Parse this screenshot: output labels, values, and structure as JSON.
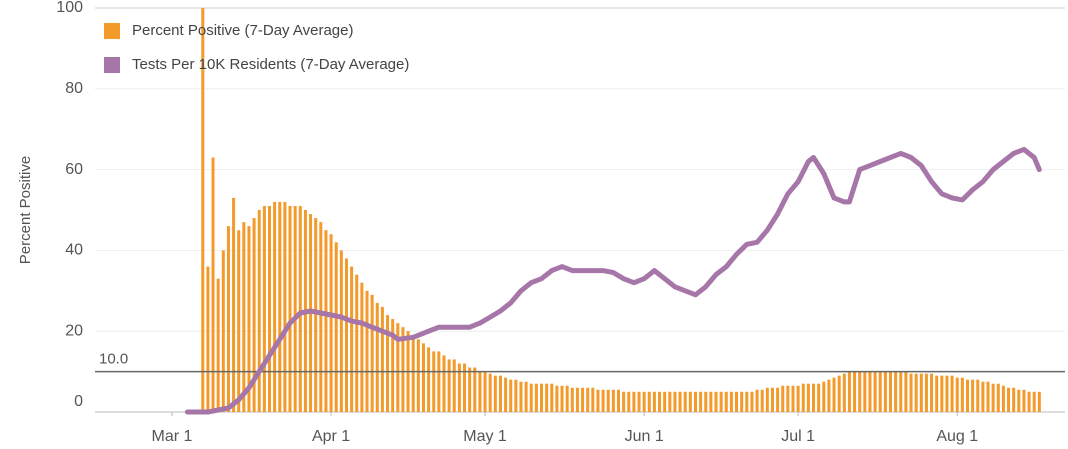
{
  "chart_data": {
    "type": "bar-line",
    "ylabel": "Percent Positive",
    "xlim": [
      -15,
      174
    ],
    "xticks": [
      {
        "value": 0,
        "label": "Mar 1"
      },
      {
        "value": 31,
        "label": "Apr 1"
      },
      {
        "value": 61,
        "label": "May 1"
      },
      {
        "value": 92,
        "label": "Jun 1"
      },
      {
        "value": 122,
        "label": "Jul 1"
      },
      {
        "value": 153,
        "label": "Aug 1"
      }
    ],
    "ylim": [
      0,
      100
    ],
    "yticks": [
      0,
      20,
      40,
      60,
      80,
      100
    ],
    "grid": true,
    "legend": "top-left",
    "reference_line": {
      "value": 10,
      "label": "10.0"
    },
    "series": [
      {
        "name": "Percent Positive (7-Day Average)",
        "type": "bar",
        "color": "#f39a2b",
        "x": [
          6,
          7,
          8,
          9,
          10,
          11,
          12,
          13,
          14,
          15,
          16,
          17,
          18,
          19,
          20,
          21,
          22,
          23,
          24,
          25,
          26,
          27,
          28,
          29,
          30,
          31,
          32,
          33,
          34,
          35,
          36,
          37,
          38,
          39,
          40,
          41,
          42,
          43,
          44,
          45,
          46,
          47,
          48,
          49,
          50,
          51,
          52,
          53,
          54,
          55,
          56,
          57,
          58,
          59,
          60,
          61,
          62,
          63,
          64,
          65,
          66,
          67,
          68,
          69,
          70,
          71,
          72,
          73,
          74,
          75,
          76,
          77,
          78,
          79,
          80,
          81,
          82,
          83,
          84,
          85,
          86,
          87,
          88,
          89,
          90,
          91,
          92,
          93,
          94,
          95,
          96,
          97,
          98,
          99,
          100,
          101,
          102,
          103,
          104,
          105,
          106,
          107,
          108,
          109,
          110,
          111,
          112,
          113,
          114,
          115,
          116,
          117,
          118,
          119,
          120,
          121,
          122,
          123,
          124,
          125,
          126,
          127,
          128,
          129,
          130,
          131,
          132,
          133,
          134,
          135,
          136,
          137,
          138,
          139,
          140,
          141,
          142,
          143,
          144,
          145,
          146,
          147,
          148,
          149,
          150,
          151,
          152,
          153,
          154,
          155,
          156,
          157,
          158,
          159,
          160,
          161,
          162,
          163,
          164,
          165,
          166,
          167,
          168,
          169
        ],
        "values": [
          100,
          36,
          63,
          33,
          40,
          46,
          53,
          45,
          47,
          46,
          48,
          50,
          51,
          51,
          52,
          52,
          52,
          51,
          51,
          51,
          50,
          49,
          48,
          47,
          45,
          44,
          42,
          40,
          38,
          36,
          34,
          32,
          30,
          29,
          27,
          26,
          24,
          23,
          22,
          21,
          20,
          19,
          18,
          17,
          16,
          15,
          15,
          14,
          13,
          13,
          12,
          12,
          11,
          11,
          10,
          10,
          9.5,
          9,
          9,
          8.5,
          8,
          8,
          7.5,
          7.5,
          7,
          7,
          7,
          7,
          7,
          6.5,
          6.5,
          6.5,
          6,
          6,
          6,
          6,
          6,
          5.5,
          5.5,
          5.5,
          5.5,
          5.5,
          5,
          5,
          5,
          5,
          5,
          5,
          5,
          5,
          5,
          5,
          5,
          5,
          5,
          5,
          5,
          5,
          5,
          5,
          5,
          5,
          5,
          5,
          5,
          5,
          5,
          5,
          5.5,
          5.5,
          6,
          6,
          6,
          6.5,
          6.5,
          6.5,
          6.5,
          7,
          7,
          7,
          7,
          7.5,
          8,
          8.5,
          9,
          9.5,
          10,
          10,
          10,
          10,
          10,
          10,
          10,
          10,
          10,
          10,
          10,
          10,
          9.5,
          9.5,
          9.5,
          9.5,
          9.5,
          9,
          9,
          9,
          9,
          8.5,
          8.5,
          8,
          8,
          8,
          7.5,
          7.5,
          7,
          7,
          6.5,
          6,
          6,
          5.5,
          5.5,
          5,
          5,
          5
        ]
      },
      {
        "name": "Tests Per 10K Residents (7-Day Average)",
        "type": "line",
        "color": "#a776a8",
        "x": [
          3,
          5,
          7,
          9,
          11,
          13,
          15,
          17,
          19,
          21,
          23,
          25,
          27,
          29,
          31,
          33,
          35,
          37,
          39,
          41,
          43,
          44,
          47,
          50,
          52,
          55,
          58,
          60,
          62,
          64,
          66,
          68,
          70,
          72,
          74,
          76,
          78,
          80,
          82,
          84,
          86,
          88,
          90,
          92,
          94,
          96,
          98,
          100,
          102,
          104,
          106,
          108,
          110,
          112,
          114,
          116,
          118,
          120,
          122,
          124,
          125,
          127,
          129,
          131,
          132,
          134,
          136,
          138,
          140,
          142,
          144,
          146,
          148,
          150,
          152,
          154,
          156,
          158,
          160,
          162,
          164,
          166,
          168,
          169
        ],
        "values": [
          0,
          0,
          0,
          0.5,
          1,
          3,
          6,
          10,
          14,
          18,
          22,
          24.5,
          25,
          24.5,
          24,
          23.5,
          22.5,
          22,
          21,
          20,
          19,
          18,
          18.5,
          20,
          21,
          21,
          21,
          22,
          23.5,
          25,
          27,
          30,
          32,
          33,
          35,
          36,
          35,
          35,
          35,
          35,
          34.5,
          33,
          32,
          33,
          35,
          33,
          31,
          30,
          29,
          31,
          34,
          36,
          39,
          41.5,
          42,
          45,
          49,
          54,
          57,
          62,
          63,
          59,
          53,
          52,
          52,
          60,
          61,
          62,
          63,
          64,
          63,
          61,
          57,
          54,
          53,
          52.5,
          55,
          57,
          60,
          62,
          64,
          65,
          63,
          60
        ]
      }
    ]
  }
}
